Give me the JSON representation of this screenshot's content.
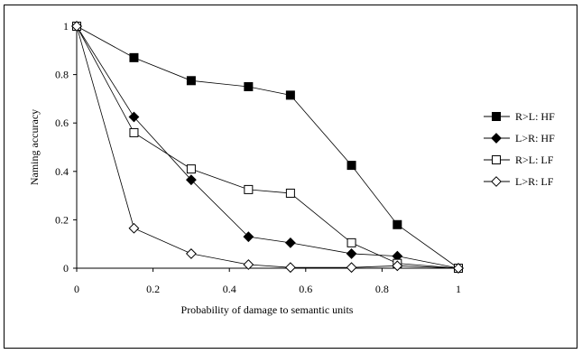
{
  "chart_data": {
    "type": "line",
    "title": "",
    "xlabel": "Probability of damage to semantic units",
    "ylabel": "Naming accuracy",
    "xlim": [
      0,
      1
    ],
    "ylim": [
      0,
      1
    ],
    "x_ticks": [
      0,
      0.2,
      0.4,
      0.6,
      0.8,
      1
    ],
    "x_tick_labels": [
      "0",
      "0.2",
      "0.4",
      "0.6",
      "0.8",
      "1"
    ],
    "y_ticks": [
      0,
      0.2,
      0.4,
      0.6,
      0.8,
      1
    ],
    "y_tick_labels": [
      "0",
      "0.2",
      "0.4",
      "0.6",
      "0.8",
      "1"
    ],
    "grid": false,
    "legend_position": "right",
    "series": [
      {
        "name": "R>L: HF",
        "marker": "square-filled",
        "x": [
          0,
          0.15,
          0.3,
          0.45,
          0.56,
          0.72,
          0.84,
          1
        ],
        "y": [
          1.0,
          0.87,
          0.775,
          0.75,
          0.715,
          0.425,
          0.18,
          0.0
        ]
      },
      {
        "name": "L>R: HF",
        "marker": "diamond-filled",
        "x": [
          0,
          0.15,
          0.3,
          0.45,
          0.56,
          0.72,
          0.84,
          1
        ],
        "y": [
          1.0,
          0.625,
          0.365,
          0.13,
          0.105,
          0.06,
          0.05,
          0.0
        ]
      },
      {
        "name": "R>L: LF",
        "marker": "square-open",
        "x": [
          0,
          0.15,
          0.3,
          0.45,
          0.56,
          0.72,
          0.84,
          1
        ],
        "y": [
          1.0,
          0.56,
          0.41,
          0.325,
          0.31,
          0.105,
          0.02,
          0.0
        ]
      },
      {
        "name": "L>R: LF",
        "marker": "diamond-open",
        "x": [
          0,
          0.15,
          0.3,
          0.45,
          0.56,
          0.72,
          0.84,
          1
        ],
        "y": [
          1.0,
          0.165,
          0.06,
          0.015,
          0.003,
          0.003,
          0.01,
          0.0
        ]
      }
    ]
  }
}
